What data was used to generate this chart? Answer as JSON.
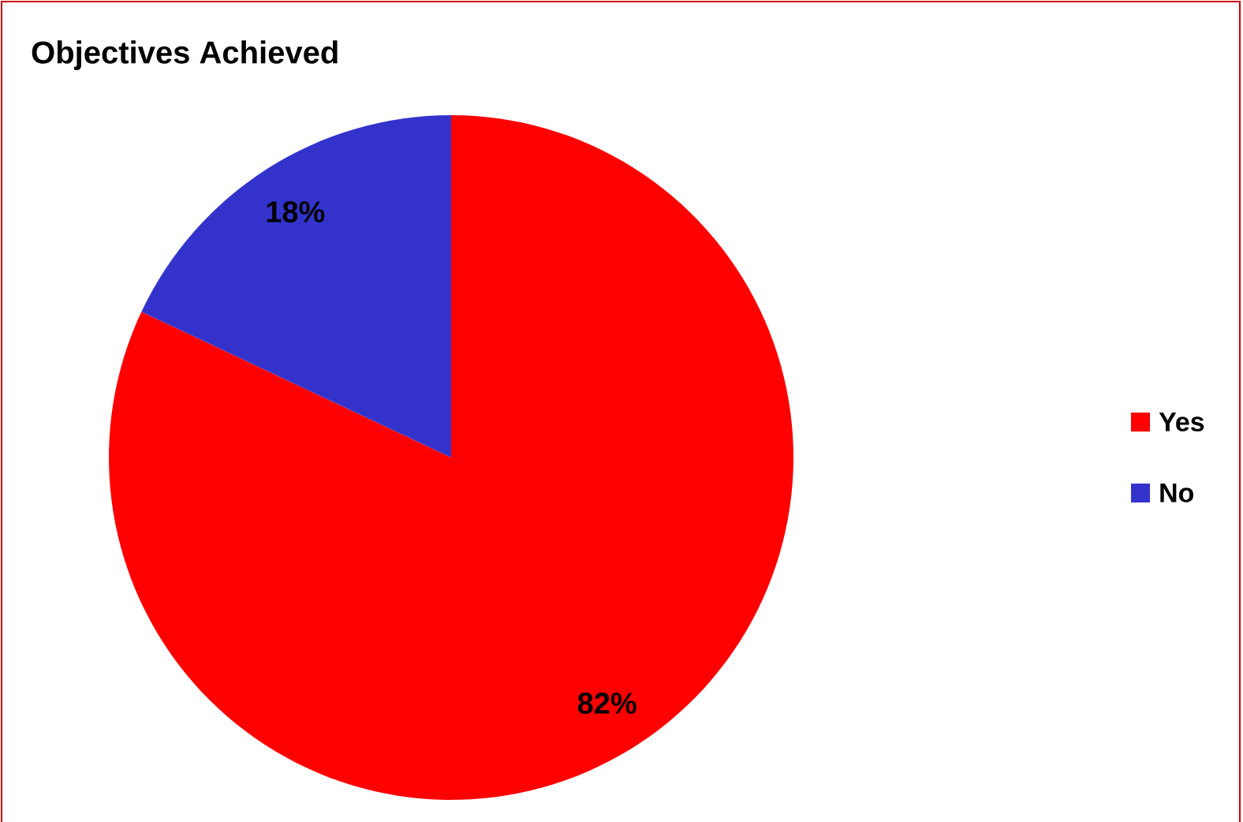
{
  "chart_data": {
    "type": "pie",
    "title": "Objectives Achieved",
    "categories": [
      "Yes",
      "No"
    ],
    "values": [
      82,
      18
    ],
    "colors": [
      "#ff0000",
      "#3333cc"
    ],
    "value_labels": [
      "82%",
      "18%"
    ],
    "legend": "right"
  }
}
